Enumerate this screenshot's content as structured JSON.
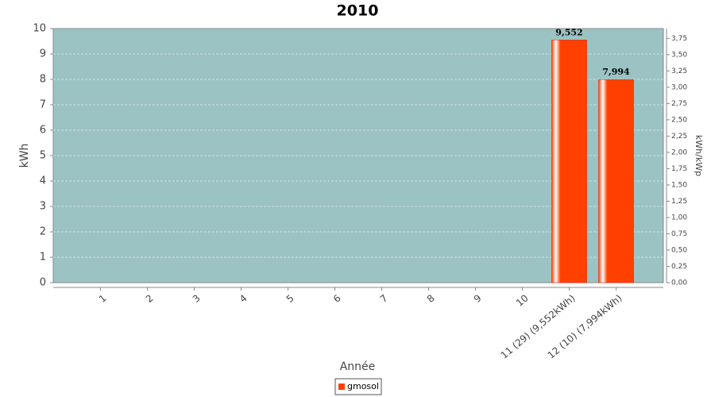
{
  "chart_data": {
    "type": "bar",
    "title": "2010",
    "x_label": "Année",
    "y_label": "kWh",
    "y2_label": "kWh/kWp",
    "categories": [
      "1",
      "2",
      "3",
      "4",
      "5",
      "6",
      "7",
      "8",
      "9",
      "10",
      "11 (29)  (9,552kWh)",
      "12 (10)  (7,994kWh)"
    ],
    "series": [
      {
        "name": "gmosol",
        "color": "#ff4000",
        "values": [
          null,
          null,
          null,
          null,
          null,
          null,
          null,
          null,
          null,
          null,
          9.552,
          7.994
        ],
        "value_labels": [
          null,
          null,
          null,
          null,
          null,
          null,
          null,
          null,
          null,
          null,
          "9,552",
          "7,994"
        ]
      }
    ],
    "ylim": [
      0,
      10
    ],
    "yticks": [
      0,
      1,
      2,
      3,
      4,
      5,
      6,
      7,
      8,
      9,
      10
    ],
    "y2lim": [
      0,
      3.9
    ],
    "y2ticks": [
      {
        "value": 0,
        "label": "0,00"
      },
      {
        "value": 0.25,
        "label": "0,25"
      },
      {
        "value": 0.5,
        "label": "0,50"
      },
      {
        "value": 0.75,
        "label": "0,75"
      },
      {
        "value": 1,
        "label": "1,00"
      },
      {
        "value": 1.25,
        "label": "1,25"
      },
      {
        "value": 1.5,
        "label": "1,50"
      },
      {
        "value": 1.75,
        "label": "1,75"
      },
      {
        "value": 2,
        "label": "2,00"
      },
      {
        "value": 2.25,
        "label": "2,25"
      },
      {
        "value": 2.5,
        "label": "2,50"
      },
      {
        "value": 2.75,
        "label": "2,75"
      },
      {
        "value": 3,
        "label": "3,00"
      },
      {
        "value": 3.25,
        "label": "3,25"
      },
      {
        "value": 3.5,
        "label": "3,50"
      },
      {
        "value": 3.75,
        "label": "3,75"
      }
    ],
    "grid": true,
    "plot_background": "#9cc3c3",
    "legend": "bottom"
  }
}
